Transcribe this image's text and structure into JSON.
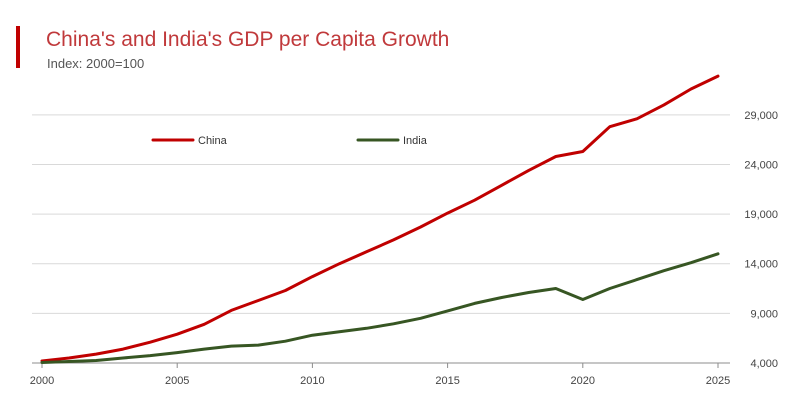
{
  "title": "China's and India's GDP per Capita Growth",
  "subtitle": "Index: 2000=100",
  "colors": {
    "accent": "#c00000",
    "china": "#c00000",
    "india": "#375623",
    "grid": "#d9d9d9",
    "axis": "#8c8c8c"
  },
  "chart_data": {
    "type": "line",
    "title": "China's and India's GDP per Capita Growth",
    "subtitle": "Index: 2000=100",
    "xlabel": "",
    "ylabel": "",
    "xlim": [
      2000,
      2025
    ],
    "ylim": [
      4000,
      31500
    ],
    "x_ticks": [
      2000,
      2005,
      2010,
      2015,
      2020,
      2025
    ],
    "y_ticks": [
      4000,
      9000,
      14000,
      19000,
      24000,
      29000
    ],
    "y_tick_labels": [
      "4,000",
      "9,000",
      "14,000",
      "19,000",
      "24,000",
      "29,000"
    ],
    "grid": true,
    "legend_position": "top",
    "x": [
      2000,
      2001,
      2002,
      2003,
      2004,
      2005,
      2006,
      2007,
      2008,
      2009,
      2010,
      2011,
      2012,
      2013,
      2014,
      2015,
      2016,
      2017,
      2018,
      2019,
      2020,
      2021,
      2022,
      2023,
      2024,
      2025
    ],
    "series": [
      {
        "name": "China",
        "color": "#c00000",
        "values": [
          4200,
          4500,
          4900,
          5400,
          6100,
          6900,
          7900,
          9300,
          10300,
          11300,
          12700,
          14000,
          15200,
          16400,
          17700,
          19100,
          20400,
          21900,
          23400,
          24800,
          25300,
          27800,
          28600,
          30000,
          31600,
          32900
        ]
      },
      {
        "name": "India",
        "color": "#375623",
        "values": [
          4050,
          4150,
          4250,
          4500,
          4750,
          5050,
          5400,
          5700,
          5800,
          6200,
          6800,
          7150,
          7500,
          7950,
          8500,
          9250,
          10000,
          10600,
          11100,
          11500,
          10400,
          11500,
          12400,
          13300,
          14100,
          15000
        ]
      }
    ]
  }
}
